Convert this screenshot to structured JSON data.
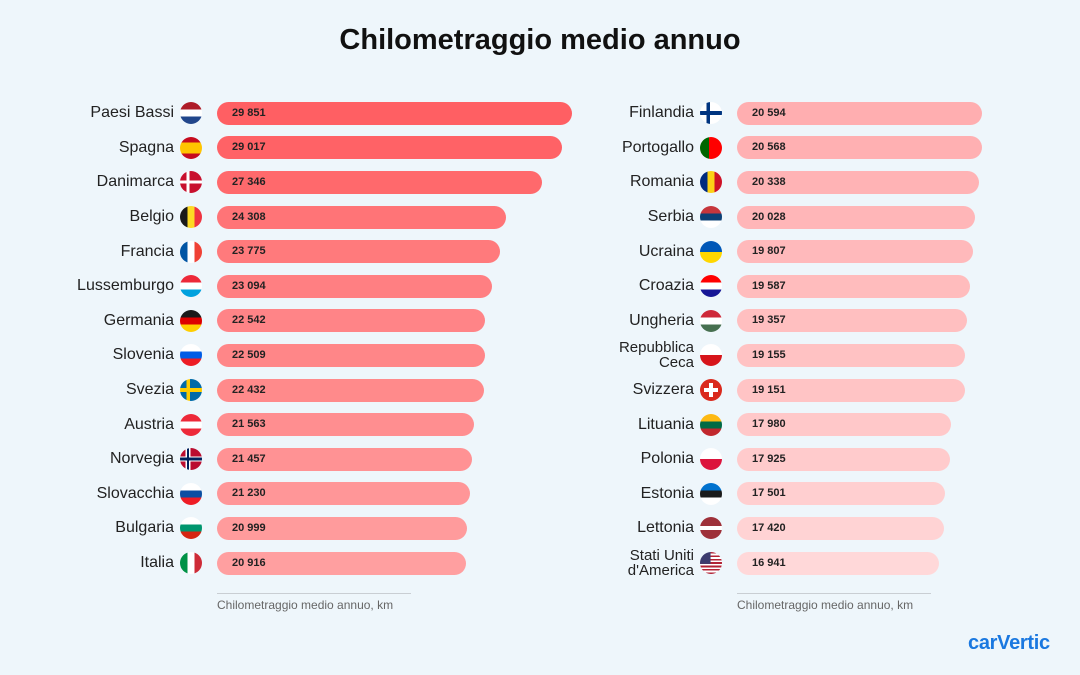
{
  "title": "Chilometraggio medio annuo",
  "brand": "carVertic",
  "chart_data": [
    {
      "type": "bar",
      "orientation": "horizontal",
      "title": "Chilometraggio medio annuo",
      "xlabel": "Chilometraggio medio annuo, km",
      "ylabel": "",
      "xlim": [
        0,
        30000
      ],
      "grid": false,
      "categories": [
        "Paesi Bassi",
        "Spagna",
        "Danimarca",
        "Belgio",
        "Francia",
        "Lussemburgo",
        "Germania",
        "Slovenia",
        "Svezia",
        "Austria",
        "Norvegia",
        "Slovacchia",
        "Bulgaria",
        "Italia"
      ],
      "value_labels": [
        "29 851",
        "29 017",
        "27 346",
        "24 308",
        "23 775",
        "23 094",
        "22 542",
        "22 509",
        "22 432",
        "21 563",
        "21 457",
        "21 230",
        "20 999",
        "20 916"
      ],
      "values": [
        29851,
        29017,
        27346,
        24308,
        23775,
        23094,
        22542,
        22509,
        22432,
        21563,
        21457,
        21230,
        20999,
        20916
      ],
      "flags": [
        "flag-netherlands-icon",
        "flag-spain-icon",
        "flag-denmark-icon",
        "flag-belgium-icon",
        "flag-france-icon",
        "flag-luxembourg-icon",
        "flag-germany-icon",
        "flag-slovenia-icon",
        "flag-sweden-icon",
        "flag-austria-icon",
        "flag-norway-icon",
        "flag-slovakia-icon",
        "flag-bulgaria-icon",
        "flag-italy-icon"
      ],
      "colors": [
        "#ff5f63",
        "#ff6266",
        "#ff696c",
        "#ff7477",
        "#ff7a7c",
        "#ff7f82",
        "#ff8487",
        "#ff8688",
        "#ff8a8b",
        "#ff8e90",
        "#ff9294",
        "#ff9698",
        "#ff9b9c",
        "#ff9fa0"
      ]
    },
    {
      "type": "bar",
      "orientation": "horizontal",
      "title": "Chilometraggio medio annuo",
      "xlabel": "Chilometraggio medio annuo, km",
      "ylabel": "",
      "xlim": [
        0,
        30000
      ],
      "grid": false,
      "categories": [
        "Finlandia",
        "Portogallo",
        "Romania",
        "Serbia",
        "Ucraina",
        "Croazia",
        "Ungheria",
        "Repubblica Ceca",
        "Svizzera",
        "Lituania",
        "Polonia",
        "Estonia",
        "Lettonia",
        "Stati Uniti d'America"
      ],
      "value_labels": [
        "20 594",
        "20 568",
        "20 338",
        "20 028",
        "19 807",
        "19 587",
        "19 357",
        "19 155",
        "19 151",
        "17 980",
        "17 925",
        "17 501",
        "17 420",
        "16 941"
      ],
      "values": [
        20594,
        20568,
        20338,
        20028,
        19807,
        19587,
        19357,
        19155,
        19151,
        17980,
        17925,
        17501,
        17420,
        16941
      ],
      "flags": [
        "flag-finland-icon",
        "flag-portugal-icon",
        "flag-romania-icon",
        "flag-serbia-icon",
        "flag-ukraine-icon",
        "flag-croatia-icon",
        "flag-hungary-icon",
        "flag-czechia-icon",
        "flag-switzerland-icon",
        "flag-lithuania-icon",
        "flag-poland-icon",
        "flag-estonia-icon",
        "flag-latvia-icon",
        "flag-usa-icon"
      ],
      "colors": [
        "#ffaeb0",
        "#ffb0b2",
        "#ffb3b5",
        "#ffb6b8",
        "#ffb9bb",
        "#ffbcbd",
        "#ffbfc0",
        "#ffc2c3",
        "#ffc4c5",
        "#ffc8c9",
        "#ffcbcc",
        "#ffcfd0",
        "#ffd3d4",
        "#ffd8d9"
      ]
    }
  ]
}
